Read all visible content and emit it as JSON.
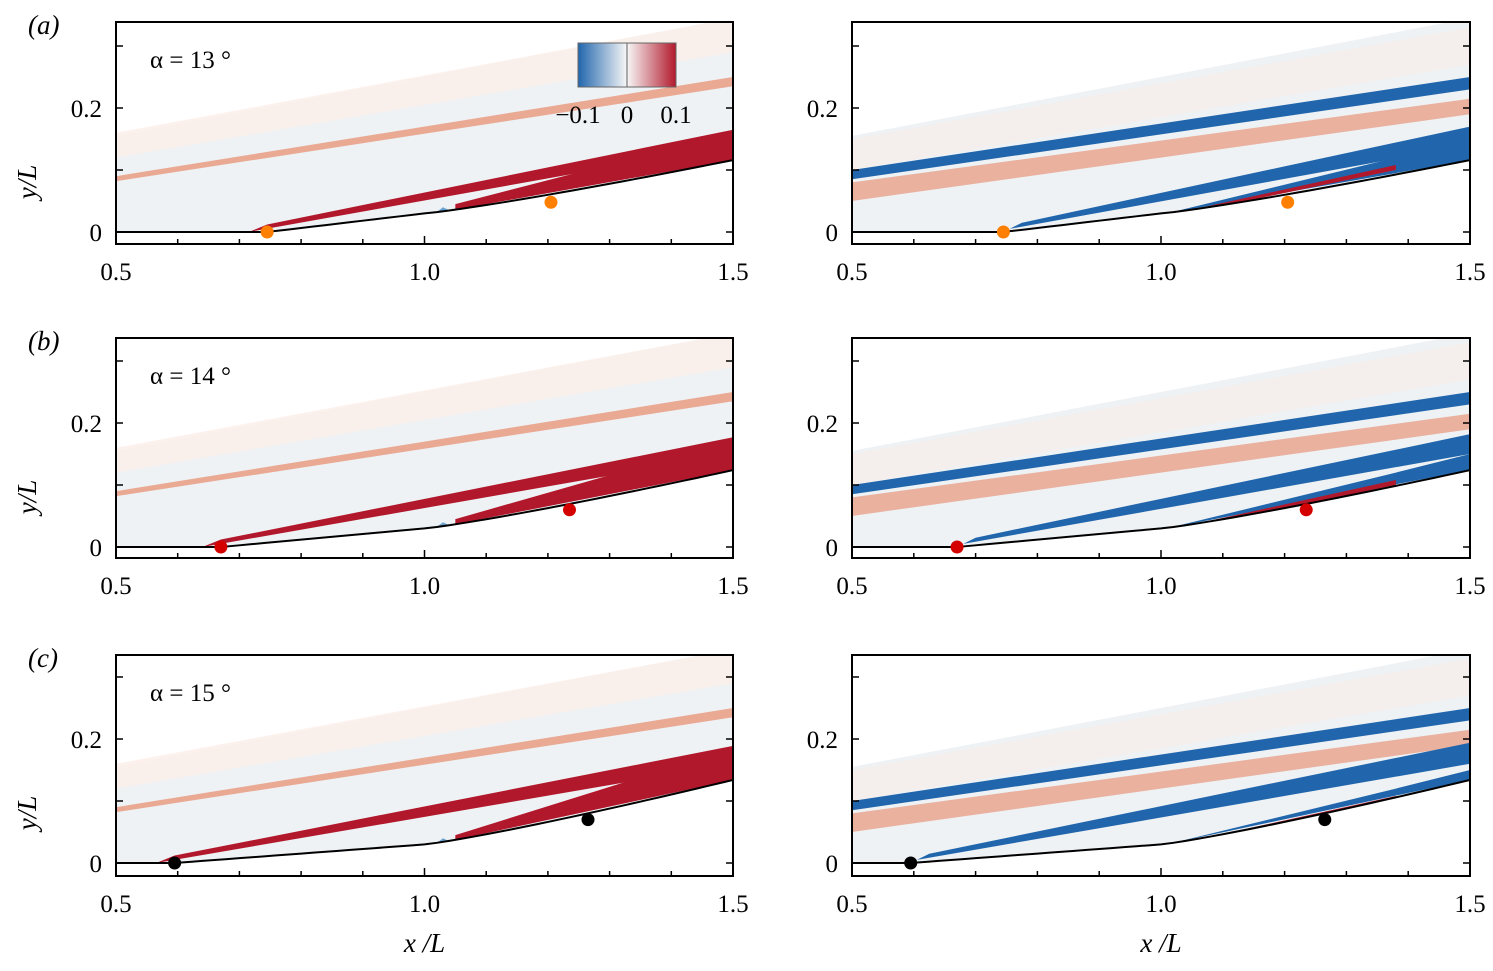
{
  "chart_data": {
    "type": "heatmap",
    "colorbar": {
      "ticks": [
        "−0.1",
        "0",
        "0.1"
      ],
      "range": [
        -0.1,
        0.1
      ],
      "colormap": "blue-white-red",
      "colors": {
        "neg": "#2166ac",
        "zero": "#f7f7f7",
        "pos": "#b2182b"
      }
    },
    "xlabel": "x /L",
    "ylabel": "y/L",
    "xlim": [
      0.5,
      1.5
    ],
    "ylim": [
      -0.02,
      0.34
    ],
    "xticks": [
      "0.5",
      "1.0",
      "1.5"
    ],
    "yticks": [
      "0",
      "0.2"
    ],
    "rows": [
      {
        "label": "(a)",
        "alpha_label": "α = 13 °",
        "marker_color": "#ff8000",
        "markers": [
          {
            "x": 0.745,
            "y": 0.0
          },
          {
            "x": 1.205,
            "y": 0.048
          }
        ],
        "wall_end_y": 0.116
      },
      {
        "label": "(b)",
        "alpha_label": "α = 14 °",
        "marker_color": "#d40000",
        "markers": [
          {
            "x": 0.67,
            "y": 0.0
          },
          {
            "x": 1.235,
            "y": 0.06
          }
        ],
        "wall_end_y": 0.124
      },
      {
        "label": "(c)",
        "alpha_label": "α = 15 °",
        "marker_color": "#000000",
        "markers": [
          {
            "x": 0.595,
            "y": 0.0
          },
          {
            "x": 1.265,
            "y": 0.07
          }
        ],
        "wall_end_y": 0.134
      }
    ]
  }
}
